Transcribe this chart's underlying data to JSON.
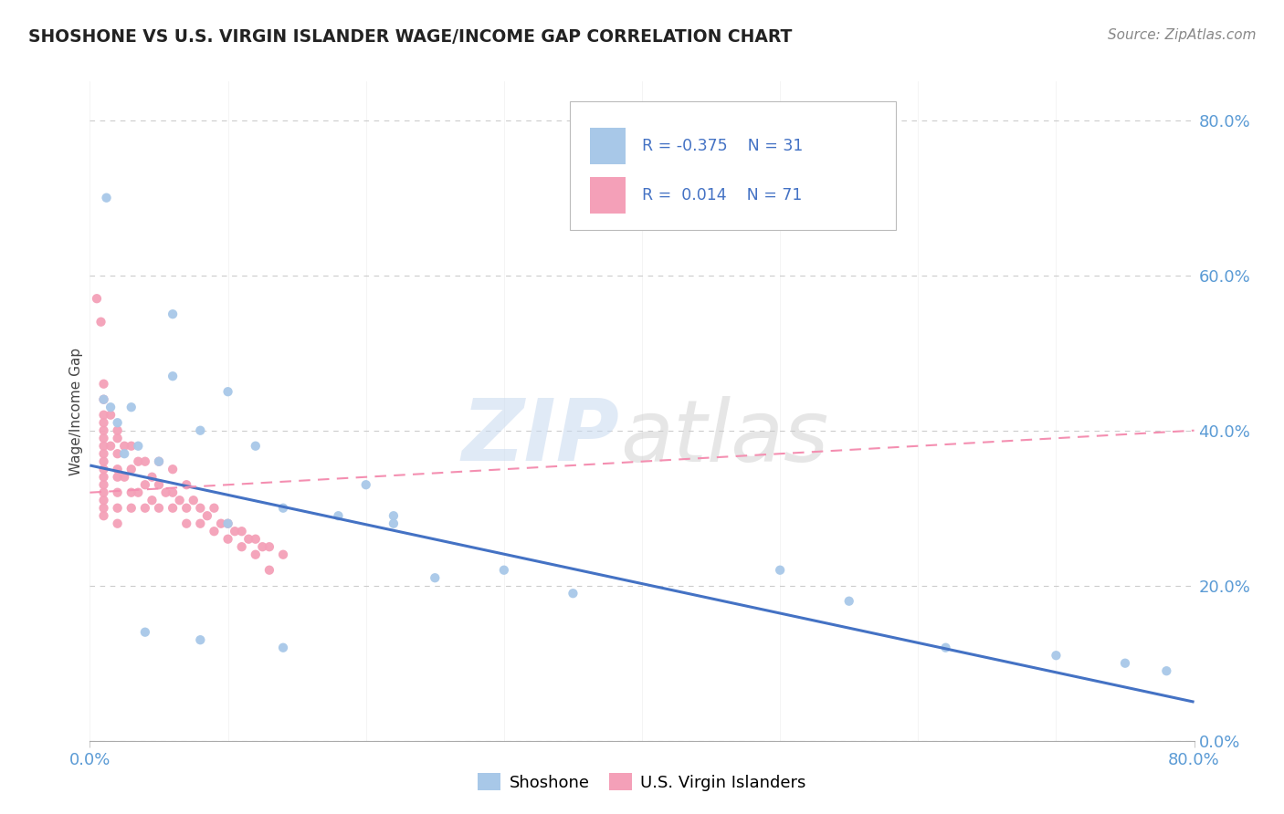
{
  "title": "SHOSHONE VS U.S. VIRGIN ISLANDER WAGE/INCOME GAP CORRELATION CHART",
  "source_text": "Source: ZipAtlas.com",
  "ylabel": "Wage/Income Gap",
  "shoshone_color": "#a8c8e8",
  "virgin_color": "#f4a0b8",
  "shoshone_line_color": "#4472c4",
  "virgin_line_color": "#f48fb1",
  "legend_label_shoshone": "Shoshone",
  "legend_label_virgin": "U.S. Virgin Islanders",
  "R_shoshone": -0.375,
  "N_shoshone": 31,
  "R_virgin": 0.014,
  "N_virgin": 71,
  "background_color": "#ffffff",
  "grid_color": "#cccccc",
  "xlim": [
    0.0,
    0.8
  ],
  "ylim": [
    0.0,
    0.85
  ],
  "shoshone_x": [
    0.012,
    0.01,
    0.015,
    0.02,
    0.025,
    0.03,
    0.035,
    0.05,
    0.06,
    0.08,
    0.1,
    0.12,
    0.14,
    0.18,
    0.2,
    0.22,
    0.06,
    0.5,
    0.55,
    0.62,
    0.7,
    0.75,
    0.78,
    0.04,
    0.08,
    0.14,
    0.22,
    0.3,
    0.35,
    0.25,
    0.1
  ],
  "shoshone_y": [
    0.7,
    0.44,
    0.43,
    0.41,
    0.37,
    0.43,
    0.38,
    0.36,
    0.55,
    0.4,
    0.45,
    0.38,
    0.3,
    0.29,
    0.33,
    0.29,
    0.47,
    0.22,
    0.18,
    0.12,
    0.11,
    0.1,
    0.09,
    0.14,
    0.13,
    0.12,
    0.28,
    0.22,
    0.19,
    0.21,
    0.28
  ],
  "virgin_x": [
    0.005,
    0.008,
    0.01,
    0.01,
    0.01,
    0.01,
    0.01,
    0.01,
    0.01,
    0.01,
    0.01,
    0.01,
    0.01,
    0.01,
    0.01,
    0.01,
    0.01,
    0.01,
    0.015,
    0.015,
    0.02,
    0.02,
    0.02,
    0.02,
    0.02,
    0.02,
    0.02,
    0.02,
    0.025,
    0.025,
    0.03,
    0.03,
    0.03,
    0.03,
    0.035,
    0.035,
    0.04,
    0.04,
    0.04,
    0.045,
    0.045,
    0.05,
    0.05,
    0.05,
    0.055,
    0.06,
    0.06,
    0.06,
    0.065,
    0.07,
    0.07,
    0.07,
    0.075,
    0.08,
    0.08,
    0.085,
    0.09,
    0.09,
    0.095,
    0.1,
    0.1,
    0.105,
    0.11,
    0.11,
    0.115,
    0.12,
    0.12,
    0.125,
    0.13,
    0.13,
    0.14
  ],
  "virgin_y": [
    0.57,
    0.54,
    0.46,
    0.44,
    0.42,
    0.41,
    0.4,
    0.39,
    0.38,
    0.37,
    0.36,
    0.35,
    0.34,
    0.33,
    0.32,
    0.31,
    0.3,
    0.29,
    0.42,
    0.38,
    0.4,
    0.39,
    0.37,
    0.35,
    0.34,
    0.32,
    0.3,
    0.28,
    0.38,
    0.34,
    0.38,
    0.35,
    0.32,
    0.3,
    0.36,
    0.32,
    0.36,
    0.33,
    0.3,
    0.34,
    0.31,
    0.36,
    0.33,
    0.3,
    0.32,
    0.35,
    0.32,
    0.3,
    0.31,
    0.33,
    0.3,
    0.28,
    0.31,
    0.3,
    0.28,
    0.29,
    0.3,
    0.27,
    0.28,
    0.28,
    0.26,
    0.27,
    0.27,
    0.25,
    0.26,
    0.26,
    0.24,
    0.25,
    0.25,
    0.22,
    0.24
  ]
}
